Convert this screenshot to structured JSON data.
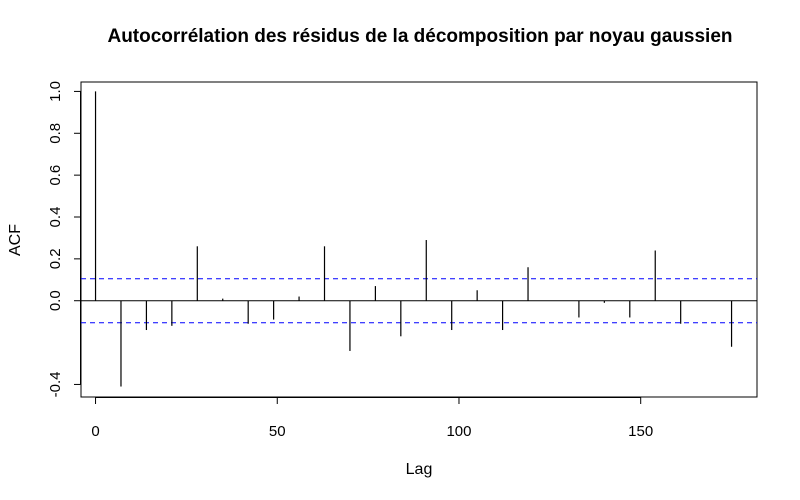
{
  "chart_data": {
    "type": "bar",
    "subtype": "acf-stem",
    "title": "Autocorrélation des résidus de la décomposition par noyau gaussien",
    "xlabel": "Lag",
    "ylabel": "ACF",
    "xlim": [
      -4,
      182
    ],
    "ylim": [
      -0.46,
      1.045
    ],
    "x_ticks": [
      0,
      50,
      100,
      150
    ],
    "x_tick_labels": [
      "0",
      "50",
      "100",
      "150"
    ],
    "y_ticks": [
      -0.4,
      0.0,
      0.2,
      0.4,
      0.6,
      0.8,
      1.0
    ],
    "y_tick_labels": [
      "-0.4",
      "0.0",
      "0.2",
      "0.4",
      "0.6",
      "0.8",
      "1.0"
    ],
    "grid": false,
    "zero_line": true,
    "confidence_bound": 0.105,
    "colors": {
      "stem": "#000000",
      "confidence": "#0000ff",
      "frame": "#000000"
    },
    "series": [
      {
        "x": [
          0,
          7,
          14,
          21,
          28,
          35,
          42,
          49,
          56,
          63,
          70,
          77,
          84,
          91,
          98,
          105,
          112,
          119,
          126,
          133,
          140,
          147,
          154,
          161,
          168,
          175
        ],
        "values": [
          1.0,
          -0.41,
          -0.14,
          -0.12,
          0.26,
          0.01,
          -0.11,
          -0.09,
          0.02,
          0.26,
          -0.24,
          0.07,
          -0.17,
          0.29,
          -0.14,
          0.05,
          -0.14,
          0.16,
          0.0,
          -0.08,
          -0.01,
          -0.08,
          0.24,
          -0.11,
          0.0,
          -0.22
        ]
      }
    ]
  }
}
